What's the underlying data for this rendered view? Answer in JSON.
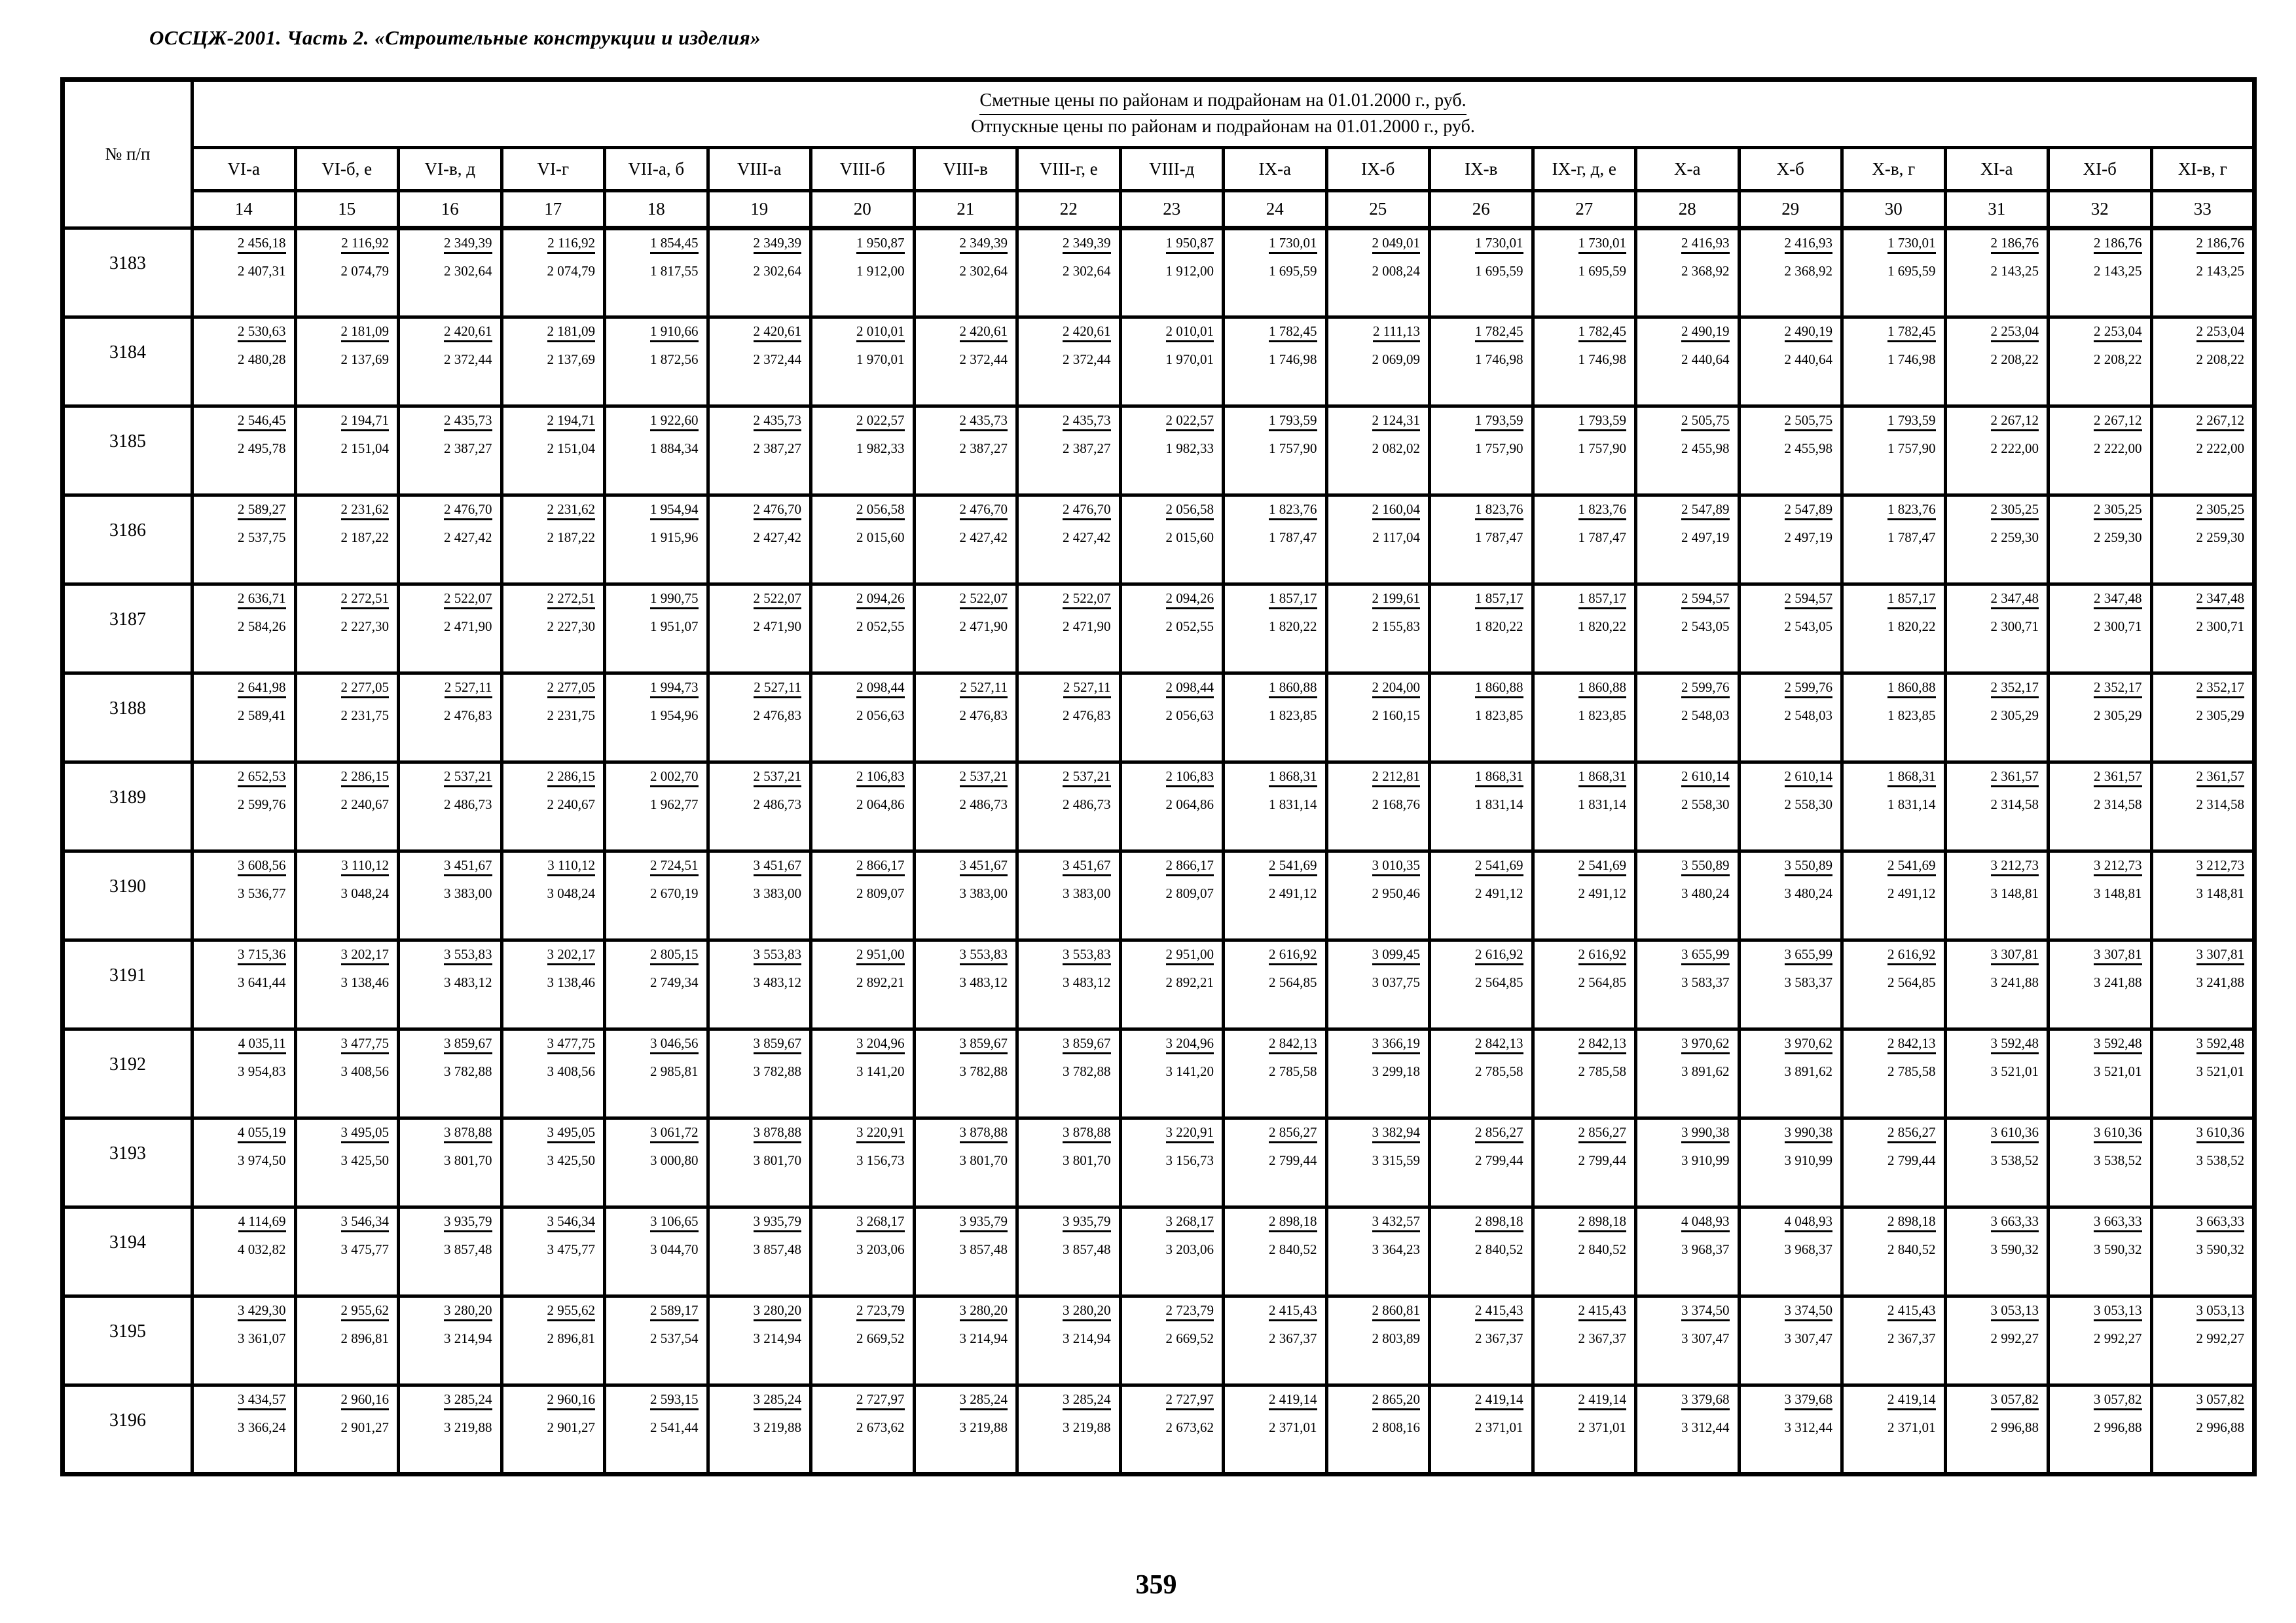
{
  "page": {
    "header_title": "ОССЦЖ-2001. Часть 2. «Строительные конструкции и изделия»",
    "page_number": "359"
  },
  "table": {
    "corner_label": "№ п/п",
    "merged_header_line1": "Сметные цены по районам и подрайонам на 01.01.2000 г., руб.",
    "merged_header_line2": "Отпускные цены по районам и подрайонам на 01.01.2000 г., руб.",
    "columns": [
      {
        "code": "VI-а",
        "num": "14"
      },
      {
        "code": "VI-б, е",
        "num": "15"
      },
      {
        "code": "VI-в, д",
        "num": "16"
      },
      {
        "code": "VI-г",
        "num": "17"
      },
      {
        "code": "VII-а, б",
        "num": "18"
      },
      {
        "code": "VIII-а",
        "num": "19"
      },
      {
        "code": "VIII-б",
        "num": "20"
      },
      {
        "code": "VIII-в",
        "num": "21"
      },
      {
        "code": "VIII-г, е",
        "num": "22"
      },
      {
        "code": "VIII-д",
        "num": "23"
      },
      {
        "code": "IX-а",
        "num": "24"
      },
      {
        "code": "IX-б",
        "num": "25"
      },
      {
        "code": "IX-в",
        "num": "26"
      },
      {
        "code": "IX-г, д, е",
        "num": "27"
      },
      {
        "code": "X-а",
        "num": "28"
      },
      {
        "code": "X-б",
        "num": "29"
      },
      {
        "code": "X-в, г",
        "num": "30"
      },
      {
        "code": "XI-а",
        "num": "31"
      },
      {
        "code": "XI-б",
        "num": "32"
      },
      {
        "code": "XI-в, г",
        "num": "33"
      }
    ],
    "rows": [
      {
        "id": "3183",
        "smeta": [
          "2 456,18",
          "2 116,92",
          "2 349,39",
          "2 116,92",
          "1 854,45",
          "2 349,39",
          "1 950,87",
          "2 349,39",
          "2 349,39",
          "1 950,87",
          "1 730,01",
          "2 049,01",
          "1 730,01",
          "1 730,01",
          "2 416,93",
          "2 416,93",
          "1 730,01",
          "2 186,76",
          "2 186,76",
          "2 186,76"
        ],
        "otpusk": [
          "2 407,31",
          "2 074,79",
          "2 302,64",
          "2 074,79",
          "1 817,55",
          "2 302,64",
          "1 912,00",
          "2 302,64",
          "2 302,64",
          "1 912,00",
          "1 695,59",
          "2 008,24",
          "1 695,59",
          "1 695,59",
          "2 368,92",
          "2 368,92",
          "1 695,59",
          "2 143,25",
          "2 143,25",
          "2 143,25"
        ]
      },
      {
        "id": "3184",
        "smeta": [
          "2 530,63",
          "2 181,09",
          "2 420,61",
          "2 181,09",
          "1 910,66",
          "2 420,61",
          "2 010,01",
          "2 420,61",
          "2 420,61",
          "2 010,01",
          "1 782,45",
          "2 111,13",
          "1 782,45",
          "1 782,45",
          "2 490,19",
          "2 490,19",
          "1 782,45",
          "2 253,04",
          "2 253,04",
          "2 253,04"
        ],
        "otpusk": [
          "2 480,28",
          "2 137,69",
          "2 372,44",
          "2 137,69",
          "1 872,56",
          "2 372,44",
          "1 970,01",
          "2 372,44",
          "2 372,44",
          "1 970,01",
          "1 746,98",
          "2 069,09",
          "1 746,98",
          "1 746,98",
          "2 440,64",
          "2 440,64",
          "1 746,98",
          "2 208,22",
          "2 208,22",
          "2 208,22"
        ]
      },
      {
        "id": "3185",
        "smeta": [
          "2 546,45",
          "2 194,71",
          "2 435,73",
          "2 194,71",
          "1 922,60",
          "2 435,73",
          "2 022,57",
          "2 435,73",
          "2 435,73",
          "2 022,57",
          "1 793,59",
          "2 124,31",
          "1 793,59",
          "1 793,59",
          "2 505,75",
          "2 505,75",
          "1 793,59",
          "2 267,12",
          "2 267,12",
          "2 267,12"
        ],
        "otpusk": [
          "2 495,78",
          "2 151,04",
          "2 387,27",
          "2 151,04",
          "1 884,34",
          "2 387,27",
          "1 982,33",
          "2 387,27",
          "2 387,27",
          "1 982,33",
          "1 757,90",
          "2 082,02",
          "1 757,90",
          "1 757,90",
          "2 455,98",
          "2 455,98",
          "1 757,90",
          "2 222,00",
          "2 222,00",
          "2 222,00"
        ]
      },
      {
        "id": "3186",
        "smeta": [
          "2 589,27",
          "2 231,62",
          "2 476,70",
          "2 231,62",
          "1 954,94",
          "2 476,70",
          "2 056,58",
          "2 476,70",
          "2 476,70",
          "2 056,58",
          "1 823,76",
          "2 160,04",
          "1 823,76",
          "1 823,76",
          "2 547,89",
          "2 547,89",
          "1 823,76",
          "2 305,25",
          "2 305,25",
          "2 305,25"
        ],
        "otpusk": [
          "2 537,75",
          "2 187,22",
          "2 427,42",
          "2 187,22",
          "1 915,96",
          "2 427,42",
          "2 015,60",
          "2 427,42",
          "2 427,42",
          "2 015,60",
          "1 787,47",
          "2 117,04",
          "1 787,47",
          "1 787,47",
          "2 497,19",
          "2 497,19",
          "1 787,47",
          "2 259,30",
          "2 259,30",
          "2 259,30"
        ]
      },
      {
        "id": "3187",
        "smeta": [
          "2 636,71",
          "2 272,51",
          "2 522,07",
          "2 272,51",
          "1 990,75",
          "2 522,07",
          "2 094,26",
          "2 522,07",
          "2 522,07",
          "2 094,26",
          "1 857,17",
          "2 199,61",
          "1 857,17",
          "1 857,17",
          "2 594,57",
          "2 594,57",
          "1 857,17",
          "2 347,48",
          "2 347,48",
          "2 347,48"
        ],
        "otpusk": [
          "2 584,26",
          "2 227,30",
          "2 471,90",
          "2 227,30",
          "1 951,07",
          "2 471,90",
          "2 052,55",
          "2 471,90",
          "2 471,90",
          "2 052,55",
          "1 820,22",
          "2 155,83",
          "1 820,22",
          "1 820,22",
          "2 543,05",
          "2 543,05",
          "1 820,22",
          "2 300,71",
          "2 300,71",
          "2 300,71"
        ]
      },
      {
        "id": "3188",
        "smeta": [
          "2 641,98",
          "2 277,05",
          "2 527,11",
          "2 277,05",
          "1 994,73",
          "2 527,11",
          "2 098,44",
          "2 527,11",
          "2 527,11",
          "2 098,44",
          "1 860,88",
          "2 204,00",
          "1 860,88",
          "1 860,88",
          "2 599,76",
          "2 599,76",
          "1 860,88",
          "2 352,17",
          "2 352,17",
          "2 352,17"
        ],
        "otpusk": [
          "2 589,41",
          "2 231,75",
          "2 476,83",
          "2 231,75",
          "1 954,96",
          "2 476,83",
          "2 056,63",
          "2 476,83",
          "2 476,83",
          "2 056,63",
          "1 823,85",
          "2 160,15",
          "1 823,85",
          "1 823,85",
          "2 548,03",
          "2 548,03",
          "1 823,85",
          "2 305,29",
          "2 305,29",
          "2 305,29"
        ]
      },
      {
        "id": "3189",
        "smeta": [
          "2 652,53",
          "2 286,15",
          "2 537,21",
          "2 286,15",
          "2 002,70",
          "2 537,21",
          "2 106,83",
          "2 537,21",
          "2 537,21",
          "2 106,83",
          "1 868,31",
          "2 212,81",
          "1 868,31",
          "1 868,31",
          "2 610,14",
          "2 610,14",
          "1 868,31",
          "2 361,57",
          "2 361,57",
          "2 361,57"
        ],
        "otpusk": [
          "2 599,76",
          "2 240,67",
          "2 486,73",
          "2 240,67",
          "1 962,77",
          "2 486,73",
          "2 064,86",
          "2 486,73",
          "2 486,73",
          "2 064,86",
          "1 831,14",
          "2 168,76",
          "1 831,14",
          "1 831,14",
          "2 558,30",
          "2 558,30",
          "1 831,14",
          "2 314,58",
          "2 314,58",
          "2 314,58"
        ]
      },
      {
        "id": "3190",
        "smeta": [
          "3 608,56",
          "3 110,12",
          "3 451,67",
          "3 110,12",
          "2 724,51",
          "3 451,67",
          "2 866,17",
          "3 451,67",
          "3 451,67",
          "2 866,17",
          "2 541,69",
          "3 010,35",
          "2 541,69",
          "2 541,69",
          "3 550,89",
          "3 550,89",
          "2 541,69",
          "3 212,73",
          "3 212,73",
          "3 212,73"
        ],
        "otpusk": [
          "3 536,77",
          "3 048,24",
          "3 383,00",
          "3 048,24",
          "2 670,19",
          "3 383,00",
          "2 809,07",
          "3 383,00",
          "3 383,00",
          "2 809,07",
          "2 491,12",
          "2 950,46",
          "2 491,12",
          "2 491,12",
          "3 480,24",
          "3 480,24",
          "2 491,12",
          "3 148,81",
          "3 148,81",
          "3 148,81"
        ]
      },
      {
        "id": "3191",
        "smeta": [
          "3 715,36",
          "3 202,17",
          "3 553,83",
          "3 202,17",
          "2 805,15",
          "3 553,83",
          "2 951,00",
          "3 553,83",
          "3 553,83",
          "2 951,00",
          "2 616,92",
          "3 099,45",
          "2 616,92",
          "2 616,92",
          "3 655,99",
          "3 655,99",
          "2 616,92",
          "3 307,81",
          "3 307,81",
          "3 307,81"
        ],
        "otpusk": [
          "3 641,44",
          "3 138,46",
          "3 483,12",
          "3 138,46",
          "2 749,34",
          "3 483,12",
          "2 892,21",
          "3 483,12",
          "3 483,12",
          "2 892,21",
          "2 564,85",
          "3 037,75",
          "2 564,85",
          "2 564,85",
          "3 583,37",
          "3 583,37",
          "2 564,85",
          "3 241,88",
          "3 241,88",
          "3 241,88"
        ]
      },
      {
        "id": "3192",
        "smeta": [
          "4 035,11",
          "3 477,75",
          "3 859,67",
          "3 477,75",
          "3 046,56",
          "3 859,67",
          "3 204,96",
          "3 859,67",
          "3 859,67",
          "3 204,96",
          "2 842,13",
          "3 366,19",
          "2 842,13",
          "2 842,13",
          "3 970,62",
          "3 970,62",
          "2 842,13",
          "3 592,48",
          "3 592,48",
          "3 592,48"
        ],
        "otpusk": [
          "3 954,83",
          "3 408,56",
          "3 782,88",
          "3 408,56",
          "2 985,81",
          "3 782,88",
          "3 141,20",
          "3 782,88",
          "3 782,88",
          "3 141,20",
          "2 785,58",
          "3 299,18",
          "2 785,58",
          "2 785,58",
          "3 891,62",
          "3 891,62",
          "2 785,58",
          "3 521,01",
          "3 521,01",
          "3 521,01"
        ]
      },
      {
        "id": "3193",
        "smeta": [
          "4 055,19",
          "3 495,05",
          "3 878,88",
          "3 495,05",
          "3 061,72",
          "3 878,88",
          "3 220,91",
          "3 878,88",
          "3 878,88",
          "3 220,91",
          "2 856,27",
          "3 382,94",
          "2 856,27",
          "2 856,27",
          "3 990,38",
          "3 990,38",
          "2 856,27",
          "3 610,36",
          "3 610,36",
          "3 610,36"
        ],
        "otpusk": [
          "3 974,50",
          "3 425,50",
          "3 801,70",
          "3 425,50",
          "3 000,80",
          "3 801,70",
          "3 156,73",
          "3 801,70",
          "3 801,70",
          "3 156,73",
          "2 799,44",
          "3 315,59",
          "2 799,44",
          "2 799,44",
          "3 910,99",
          "3 910,99",
          "2 799,44",
          "3 538,52",
          "3 538,52",
          "3 538,52"
        ]
      },
      {
        "id": "3194",
        "smeta": [
          "4 114,69",
          "3 546,34",
          "3 935,79",
          "3 546,34",
          "3 106,65",
          "3 935,79",
          "3 268,17",
          "3 935,79",
          "3 935,79",
          "3 268,17",
          "2 898,18",
          "3 432,57",
          "2 898,18",
          "2 898,18",
          "4 048,93",
          "4 048,93",
          "2 898,18",
          "3 663,33",
          "3 663,33",
          "3 663,33"
        ],
        "otpusk": [
          "4 032,82",
          "3 475,77",
          "3 857,48",
          "3 475,77",
          "3 044,70",
          "3 857,48",
          "3 203,06",
          "3 857,48",
          "3 857,48",
          "3 203,06",
          "2 840,52",
          "3 364,23",
          "2 840,52",
          "2 840,52",
          "3 968,37",
          "3 968,37",
          "2 840,52",
          "3 590,32",
          "3 590,32",
          "3 590,32"
        ]
      },
      {
        "id": "3195",
        "smeta": [
          "3 429,30",
          "2 955,62",
          "3 280,20",
          "2 955,62",
          "2 589,17",
          "3 280,20",
          "2 723,79",
          "3 280,20",
          "3 280,20",
          "2 723,79",
          "2 415,43",
          "2 860,81",
          "2 415,43",
          "2 415,43",
          "3 374,50",
          "3 374,50",
          "2 415,43",
          "3 053,13",
          "3 053,13",
          "3 053,13"
        ],
        "otpusk": [
          "3 361,07",
          "2 896,81",
          "3 214,94",
          "2 896,81",
          "2 537,54",
          "3 214,94",
          "2 669,52",
          "3 214,94",
          "3 214,94",
          "2 669,52",
          "2 367,37",
          "2 803,89",
          "2 367,37",
          "2 367,37",
          "3 307,47",
          "3 307,47",
          "2 367,37",
          "2 992,27",
          "2 992,27",
          "2 992,27"
        ]
      },
      {
        "id": "3196",
        "smeta": [
          "3 434,57",
          "2 960,16",
          "3 285,24",
          "2 960,16",
          "2 593,15",
          "3 285,24",
          "2 727,97",
          "3 285,24",
          "3 285,24",
          "2 727,97",
          "2 419,14",
          "2 865,20",
          "2 419,14",
          "2 419,14",
          "3 379,68",
          "3 379,68",
          "2 419,14",
          "3 057,82",
          "3 057,82",
          "3 057,82"
        ],
        "otpusk": [
          "3 366,24",
          "2 901,27",
          "3 219,88",
          "2 901,27",
          "2 541,44",
          "3 219,88",
          "2 673,62",
          "3 219,88",
          "3 219,88",
          "2 673,62",
          "2 371,01",
          "2 808,16",
          "2 371,01",
          "2 371,01",
          "3 312,44",
          "3 312,44",
          "2 371,01",
          "2 996,88",
          "2 996,88",
          "2 996,88"
        ]
      }
    ]
  }
}
